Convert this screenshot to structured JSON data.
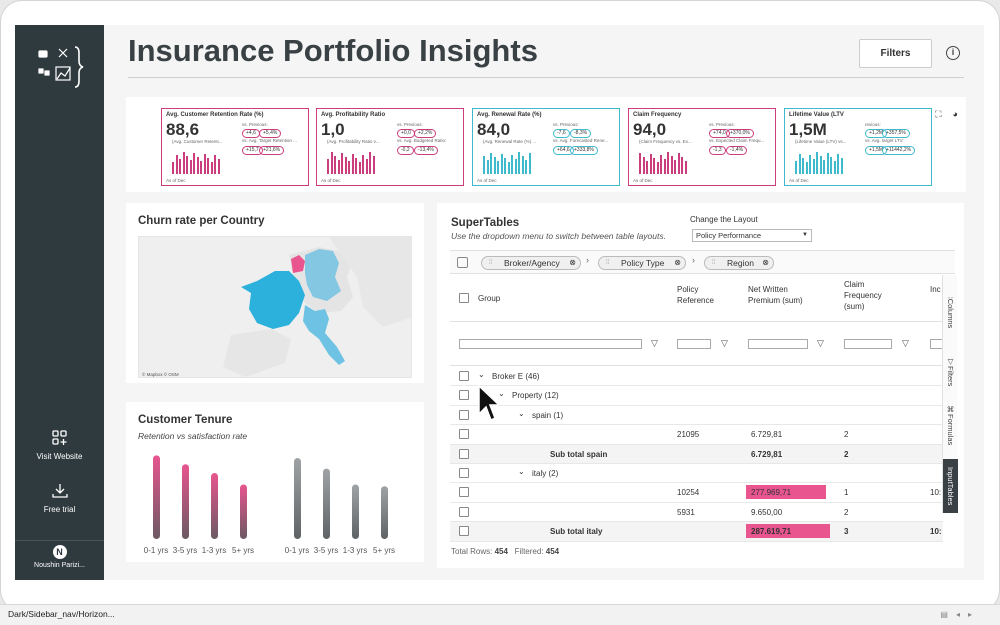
{
  "page": {
    "title": "Insurance Portfolio Insights",
    "filters_label": "Filters",
    "info_icon": "info-icon"
  },
  "sidebar": {
    "visit_website": "Visit Website",
    "free_trial": "Free trial",
    "user_initial": "N",
    "user_name": "Noushin Parizi..."
  },
  "kpis": [
    {
      "title": "Avg. Customer Retention Rate (%)",
      "value": "88,6",
      "prev_label": "vs. Previous:",
      "prev_a": "+4,6",
      "prev_b": "+5,4%",
      "target_label": "vs. Avg. Target Retention ...",
      "target_a": "+15,7",
      "target_b": "+21,6%",
      "sub": "(Avg. Customer Retenti...",
      "as_of": "As of Dec",
      "color": "#cc3d7e"
    },
    {
      "title": "Avg. Profitability Ratio",
      "value": "1,0",
      "prev_label": "vs. Previous:",
      "prev_a": "+0,0",
      "prev_b": "+2,2%",
      "target_label": "vs. Avg. Budgeted Ratio:",
      "target_a": "-0,2",
      "target_b": "-13,4%",
      "sub": "(Avg. Profitability Ratio v...",
      "as_of": "As of Dec",
      "color": "#cc3d7e"
    },
    {
      "title": "Avg. Renewal Rate (%)",
      "value": "84,0",
      "prev_label": "vs. Previous:",
      "prev_a": "-7,6",
      "prev_b": "-8,3%",
      "target_label": "vs. Avg. Forecasted Rene...",
      "target_a": "+64,6",
      "target_b": "+333,8%",
      "sub": "(Avg. Renewal Rate (%) ...",
      "as_of": "As of Dec",
      "color": "#3fb9cc"
    },
    {
      "title": "Claim Frequency",
      "value": "94,0",
      "prev_label": "vs. Previous:",
      "prev_a": "+74,0",
      "prev_b": "+370,0%",
      "target_label": "vs. Expected Claim Frequ...",
      "target_a": "-1,3",
      "target_b": "-1,4%",
      "sub": "(Claim Frequency vs. Ex...",
      "as_of": "As of Dec",
      "color": "#cc3d7e"
    },
    {
      "title": "Lifetime Value (LTV",
      "value": "1,5M",
      "prev_label": "revious:",
      "prev_a": "+1,2M",
      "prev_b": "+357,5%",
      "target_label": "vs. Avg. target LTV:",
      "target_a": "+1,5M",
      "target_b": "+11442,2%",
      "sub": "(Lifetime Value (LTV) vs...",
      "as_of": "As of Dec",
      "color": "#3fb9cc"
    }
  ],
  "kpi_toolbar_icons": [
    "sort-asc-icon",
    "sort-desc-icon",
    "zoom-in-icon",
    "zoom-out-icon",
    "fullscreen-icon",
    "palette-icon"
  ],
  "churn": {
    "title": "Churn rate per Country",
    "credit": "© Mapbox © OSM"
  },
  "tenure": {
    "title": "Customer Tenure",
    "subtitle": "Retention vs satisfaction rate",
    "labels": [
      "0-1 yrs",
      "3-5 yrs",
      "1-3 yrs",
      "5+ yrs",
      "0-1 yrs",
      "3-5 yrs",
      "1-3 yrs",
      "5+ yrs"
    ],
    "values": [
      0.95,
      0.85,
      0.75,
      0.62,
      0.92,
      0.8,
      0.62,
      0.6
    ]
  },
  "supertables": {
    "title": "SuperTables",
    "subtitle": "Use the dropdown menu to switch between table layouts.",
    "layout_label": "Change the Layout",
    "layout_value": "Policy Performance",
    "chips": [
      "Broker/Agency",
      "Policy Type",
      "Region"
    ],
    "headers": {
      "group": "Group",
      "policy_ref": "Policy\nReference",
      "premium": "Net Written\nPremium (sum)",
      "claim": "Claim\nFrequency\n(sum)",
      "ind": "Inc"
    },
    "rows": [
      {
        "label": "Broker E (46)",
        "ref": "",
        "premium": "",
        "claim": "",
        "ind": "",
        "indent": 0,
        "expander": "⌄",
        "sub": false
      },
      {
        "label": "Property (12)",
        "ref": "",
        "premium": "",
        "claim": "",
        "ind": "",
        "indent": 1,
        "expander": "⌄",
        "sub": false
      },
      {
        "label": "spain (1)",
        "ref": "",
        "premium": "",
        "claim": "",
        "ind": "",
        "indent": 2,
        "expander": "⌄",
        "sub": false
      },
      {
        "label": "",
        "ref": "21095",
        "premium": "6.729,81",
        "claim": "2",
        "ind": "",
        "indent": 0,
        "expander": "",
        "sub": false
      },
      {
        "label": "Sub total spain",
        "ref": "",
        "premium": "6.729,81",
        "claim": "2",
        "ind": "",
        "indent": 3,
        "expander": "",
        "sub": true
      },
      {
        "label": "italy (2)",
        "ref": "",
        "premium": "",
        "claim": "",
        "ind": "",
        "indent": 2,
        "expander": "⌄",
        "sub": false
      },
      {
        "label": "",
        "ref": "10254",
        "premium": "277.969,71",
        "claim": "1",
        "ind": "10:",
        "indent": 0,
        "expander": "",
        "sub": false,
        "hl": true
      },
      {
        "label": "",
        "ref": "5931",
        "premium": "9.650,00",
        "claim": "2",
        "ind": "",
        "indent": 0,
        "expander": "",
        "sub": false
      },
      {
        "label": "Sub total italy",
        "ref": "",
        "premium": "287.619,71",
        "claim": "3",
        "ind": "10:",
        "indent": 3,
        "expander": "",
        "sub": true,
        "hl": true
      }
    ],
    "total_rows_label": "Total Rows:",
    "total_rows": "454",
    "filtered_label": "Filtered:",
    "filtered": "454",
    "side_tabs": [
      "Columns",
      "Filters",
      "Formulas",
      "InputTables"
    ]
  },
  "status_bar": {
    "path": "Dark/Sidebar_nav/Horizon..."
  },
  "colors": {
    "accent_pink": "#e8558f",
    "accent_teal": "#3fb9cc",
    "sidebar_bg": "#2f3a3e"
  }
}
